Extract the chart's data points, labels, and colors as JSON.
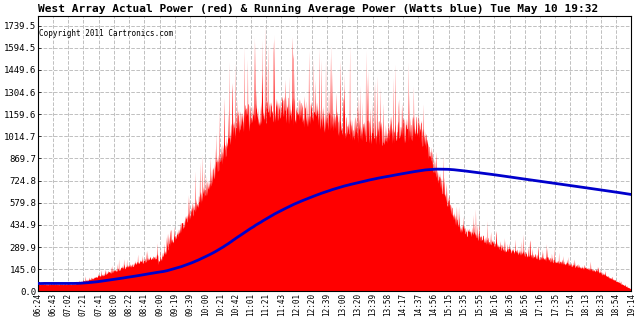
{
  "title": "West Array Actual Power (red) & Running Average Power (Watts blue) Tue May 10 19:32",
  "copyright": "Copyright 2011 Cartronics.com",
  "yticks": [
    0.0,
    145.0,
    289.9,
    434.9,
    579.8,
    724.8,
    869.7,
    1014.7,
    1159.6,
    1304.6,
    1449.6,
    1594.5,
    1739.5
  ],
  "ylim": [
    0,
    1800
  ],
  "background_color": "#ffffff",
  "plot_bg_color": "#ffffff",
  "grid_color": "#c0c0c0",
  "actual_color": "#ff0000",
  "avg_color": "#0000cc",
  "x_labels": [
    "06:24",
    "06:43",
    "07:02",
    "07:21",
    "07:41",
    "08:00",
    "08:22",
    "08:41",
    "09:00",
    "09:19",
    "09:39",
    "10:00",
    "10:21",
    "10:42",
    "11:01",
    "11:21",
    "11:43",
    "12:01",
    "12:20",
    "12:39",
    "13:00",
    "13:20",
    "13:39",
    "13:58",
    "14:17",
    "14:37",
    "14:56",
    "15:15",
    "15:35",
    "15:55",
    "16:16",
    "16:36",
    "16:56",
    "17:16",
    "17:35",
    "17:54",
    "18:13",
    "18:33",
    "18:54",
    "19:14"
  ],
  "n_labels": 40
}
